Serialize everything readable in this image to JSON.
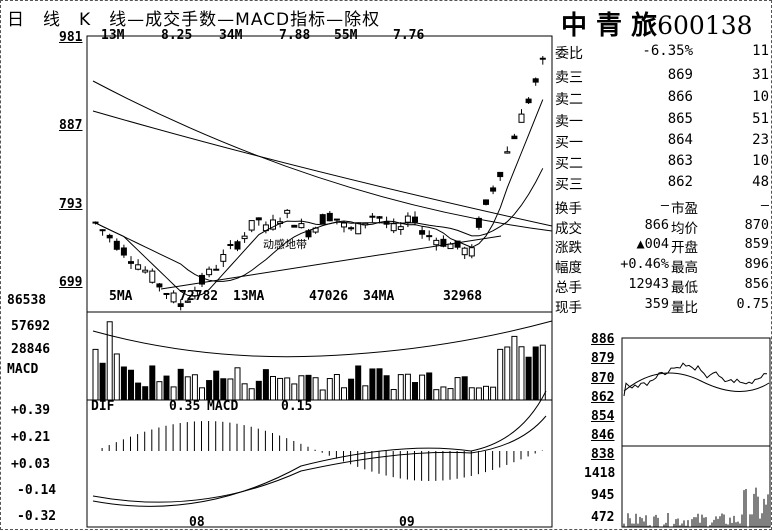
{
  "header": {
    "title": "日　线　K　线—成交手数—MACD指标—除权",
    "stock_name": "中 青 旅",
    "stock_code": "600138"
  },
  "ma_legend": {
    "ma13_label": "13M",
    "ma13_value": "8.25",
    "ma34_label": "34M",
    "ma34_value": "7.88",
    "ma55_label": "55M",
    "ma55_value": "7.76"
  },
  "price_axis": {
    "top": "981",
    "mid1": "887",
    "mid2": "793",
    "bottom": "699"
  },
  "volume_legend": {
    "ma5_label": "5MA",
    "ma5_value": "72782",
    "ma13_label": "13MA",
    "ma13_value": "47026",
    "ma34_label": "34MA",
    "ma34_value": "32968"
  },
  "volume_axis": [
    "86538",
    "57692",
    "28846"
  ],
  "macd_legend": {
    "name": "MACD",
    "dif_label": "DIF",
    "dif_value": "0.35",
    "macd_label": "MACD",
    "macd_value": "0.15"
  },
  "macd_axis": [
    "+0.39",
    "+0.21",
    "+0.03",
    "-0.14",
    "-0.32"
  ],
  "x_axis": [
    "08",
    "09"
  ],
  "annotation": "动感地带",
  "quote": {
    "weibi_label": "委比",
    "weibi_value": "-6.35%",
    "weibi_vol": "11",
    "rows": [
      {
        "label": "卖三",
        "price": "869",
        "vol": "31"
      },
      {
        "label": "卖二",
        "price": "866",
        "vol": "10"
      },
      {
        "label": "卖一",
        "price": "865",
        "vol": "51"
      },
      {
        "label": "买一",
        "price": "864",
        "vol": "23"
      },
      {
        "label": "买二",
        "price": "863",
        "vol": "10"
      },
      {
        "label": "买三",
        "price": "862",
        "vol": "48"
      }
    ]
  },
  "stats": [
    {
      "l1": "换手",
      "v1": "—",
      "l2": "市盈",
      "v2": "—"
    },
    {
      "l1": "成交",
      "v1": "866",
      "l2": "均价",
      "v2": "870"
    },
    {
      "l1": "涨跌",
      "v1": "▲004",
      "l2": "开盘",
      "v2": "859"
    },
    {
      "l1": "幅度",
      "v1": "+0.46%",
      "l2": "最高",
      "v2": "896"
    },
    {
      "l1": "总手",
      "v1": "12943",
      "l2": "最低",
      "v2": "856"
    },
    {
      "l1": "现手",
      "v1": "359",
      "l2": "量比",
      "v2": "0.75"
    }
  ],
  "intraday_axis": [
    "886",
    "879",
    "870",
    "862",
    "854",
    "846",
    "838"
  ],
  "intraday_volume_axis": [
    "1418",
    "945",
    "472"
  ]
}
